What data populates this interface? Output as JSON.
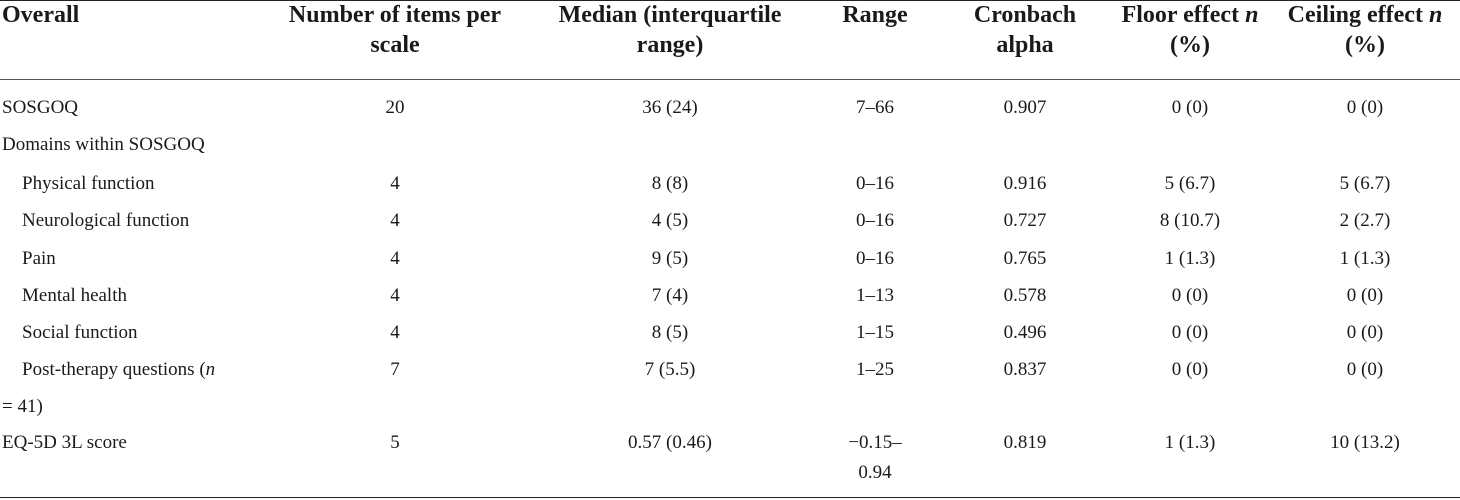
{
  "header": {
    "overall": "Overall",
    "items_line1": "Number of items per",
    "items_line2": "scale",
    "median_line1": "Median (interquartile",
    "median_line2": "range)",
    "range": "Range",
    "alpha_line1": "Cronbach",
    "alpha_line2": "alpha",
    "floor_line1_text": "Floor effect ",
    "floor_n": "n",
    "floor_line2": "(%)",
    "ceiling_line1_text": "Ceiling effect ",
    "ceiling_n": "n",
    "ceiling_line2": "(%)"
  },
  "rows": [
    {
      "label": "SOSGOQ",
      "items": "20",
      "median": "36 (24)",
      "range": "7–66",
      "alpha": "0.907",
      "floor": "0 (0)",
      "ceiling": "0 (0)"
    },
    {
      "label": "Domains within SOSGOQ",
      "items": "",
      "median": "",
      "range": "",
      "alpha": "",
      "floor": "",
      "ceiling": ""
    },
    {
      "label": "Physical function",
      "items": "4",
      "median": "8 (8)",
      "range": "0–16",
      "alpha": "0.916",
      "floor": "5 (6.7)",
      "ceiling": "5 (6.7)"
    },
    {
      "label": "Neurological function",
      "items": "4",
      "median": "4 (5)",
      "range": "0–16",
      "alpha": "0.727",
      "floor": "8 (10.7)",
      "ceiling": "2 (2.7)"
    },
    {
      "label": "Pain",
      "items": "4",
      "median": "9 (5)",
      "range": "0–16",
      "alpha": "0.765",
      "floor": "1 (1.3)",
      "ceiling": "1 (1.3)"
    },
    {
      "label": "Mental health",
      "items": "4",
      "median": "7 (4)",
      "range": "1–13",
      "alpha": "0.578",
      "floor": "0 (0)",
      "ceiling": "0 (0)"
    },
    {
      "label": "Social function",
      "items": "4",
      "median": "8 (5)",
      "range": "1–15",
      "alpha": "0.496",
      "floor": "0 (0)",
      "ceiling": "0 (0)"
    },
    {
      "label_line1": "Post-therapy questions (",
      "label_n": "n",
      "label_line2": "= 41)",
      "items": "7",
      "median": "7 (5.5)",
      "range": "1–25",
      "alpha": "0.837",
      "floor": "0 (0)",
      "ceiling": "0 (0)"
    },
    {
      "label": "EQ-5D 3L score",
      "items": "5",
      "median": "0.57 (0.46)",
      "range_line1": "−0.15–",
      "range_line2": "0.94",
      "alpha": "0.819",
      "floor": "1 (1.3)",
      "ceiling": "10 (13.2)"
    }
  ]
}
